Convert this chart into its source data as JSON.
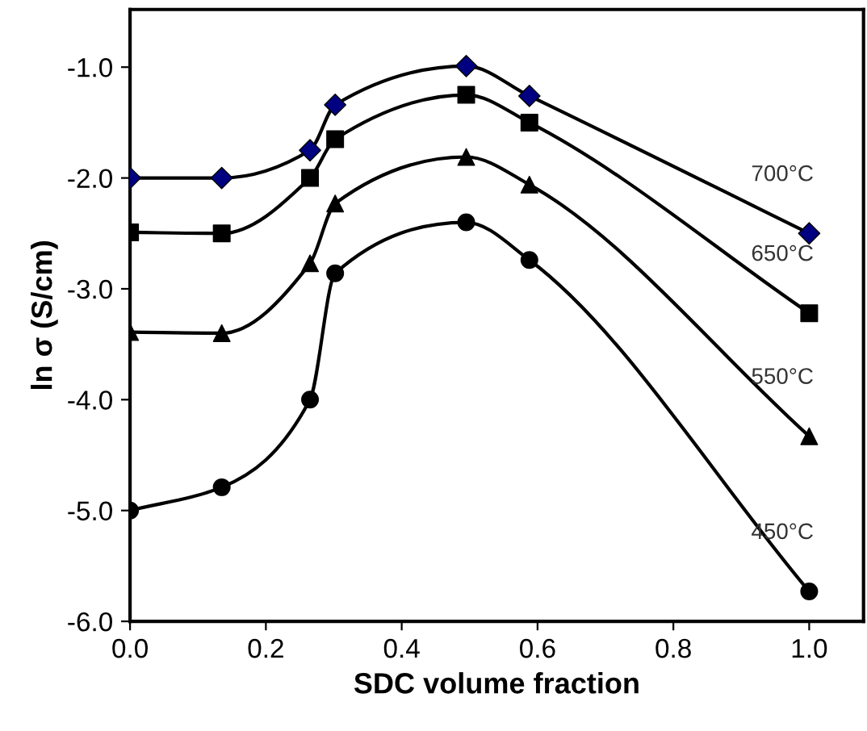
{
  "chart_data": {
    "type": "line",
    "xlabel": "SDC volume fraction",
    "ylabel": "ln σ (S/cm)",
    "x": [
      0.0,
      0.135,
      0.265,
      0.302,
      0.495,
      0.588,
      1.0
    ],
    "series": [
      {
        "name": "700°C",
        "color": "#000080",
        "marker": "diamond",
        "values": [
          -2.0,
          -2.0,
          -1.75,
          -1.34,
          -0.99,
          -1.26,
          -2.5
        ]
      },
      {
        "name": "650°C",
        "color": "#000000",
        "marker": "square",
        "values": [
          -2.49,
          -2.5,
          -2.0,
          -1.65,
          -1.25,
          -1.5,
          -3.22
        ]
      },
      {
        "name": "550°C",
        "color": "#000000",
        "marker": "triangle",
        "values": [
          -3.39,
          -3.4,
          -2.77,
          -2.23,
          -1.81,
          -2.06,
          -4.33
        ]
      },
      {
        "name": "450°C",
        "color": "#000000",
        "marker": "circle",
        "values": [
          -5.0,
          -4.79,
          -4.0,
          -2.86,
          -2.4,
          -2.74,
          -5.73
        ]
      }
    ],
    "xlim": [
      0.0,
      1.08
    ],
    "ylim": [
      -6.0,
      -0.48
    ],
    "xticks": [
      {
        "value": 0.0,
        "label": "0.0"
      },
      0.2,
      0.4,
      0.6,
      0.8,
      {
        "value": 1.0,
        "label": "1.0"
      }
    ],
    "yticks": [
      {
        "value": -6.0,
        "label": "-6.0"
      },
      {
        "value": -5.0,
        "label": "-5.0"
      },
      {
        "value": -4.0,
        "label": "-4.0"
      },
      {
        "value": -3.0,
        "label": "-3.0"
      },
      {
        "value": -2.0,
        "label": "-2.0"
      },
      {
        "value": -1.0,
        "label": "-1.0"
      }
    ],
    "grid": false,
    "legend": false,
    "line_style": "solid"
  }
}
